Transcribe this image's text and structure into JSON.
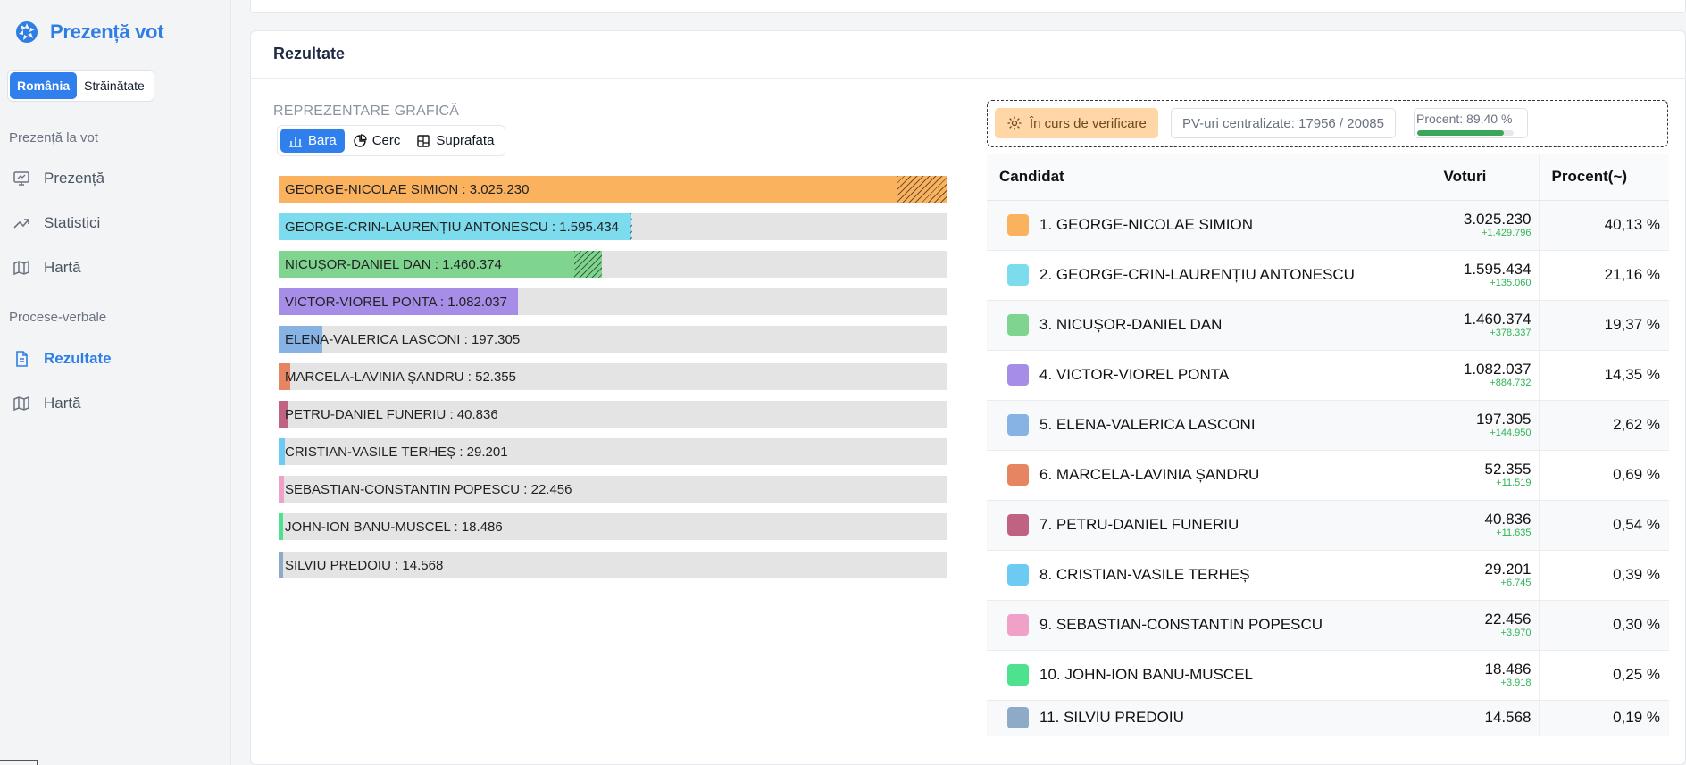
{
  "app": {
    "title": "Prezență vot"
  },
  "region_tabs": [
    "România",
    "Străinătate"
  ],
  "nav": {
    "section1": "Prezență la vot",
    "items1": [
      "Prezență",
      "Statistici",
      "Hartă"
    ],
    "section2": "Procese-verbale",
    "items2": [
      "Rezultate",
      "Hartă"
    ]
  },
  "results": {
    "title": "Rezultate",
    "graph_label": "REPREZENTARE GRAFICĂ",
    "chart_tabs": [
      "Bara",
      "Cerc",
      "Suprafata"
    ]
  },
  "status": {
    "verify": "În curs de verificare",
    "pv": "PV-uri centralizate: 17956 / 20085",
    "percent_label": "Procent: 89,40 %",
    "percent_value": 0.894
  },
  "table": {
    "headers": [
      "Candidat",
      "Voturi",
      "Procent(~)"
    ]
  },
  "candidates": [
    {
      "name": "GEORGE-NICOLAE SIMION",
      "votes": "3.025.230",
      "delta": "+1.429.796",
      "percent": "40,13 %",
      "color": "#fbb25f",
      "bar_label": "GEORGE-NICOLAE SIMION : 3.025.230"
    },
    {
      "name": "GEORGE-CRIN-LAURENȚIU ANTONESCU",
      "votes": "1.595.434",
      "delta": "+135.060",
      "percent": "21,16 %",
      "color": "#7cdbec",
      "bar_label": "GEORGE-CRIN-LAURENȚIU ANTONESCU : 1.595.434"
    },
    {
      "name": "NICUȘOR-DANIEL DAN",
      "votes": "1.460.374",
      "delta": "+378.337",
      "percent": "19,37 %",
      "color": "#7fd48f",
      "bar_label": "NICUȘOR-DANIEL DAN : 1.460.374"
    },
    {
      "name": "VICTOR-VIOREL PONTA",
      "votes": "1.082.037",
      "delta": "+884.732",
      "percent": "14,35 %",
      "color": "#a68ee8",
      "bar_label": "VICTOR-VIOREL PONTA : 1.082.037"
    },
    {
      "name": "ELENA-VALERICA LASCONI",
      "votes": "197.305",
      "delta": "+144.950",
      "percent": "2,62 %",
      "color": "#86b3e4",
      "bar_label": "ELENA-VALERICA LASCONI : 197.305"
    },
    {
      "name": "MARCELA-LAVINIA ȘANDRU",
      "votes": "52.355",
      "delta": "+11.519",
      "percent": "0,69 %",
      "color": "#e58562",
      "bar_label": "MARCELA-LAVINIA ȘANDRU : 52.355"
    },
    {
      "name": "PETRU-DANIEL FUNERIU",
      "votes": "40.836",
      "delta": "+11.635",
      "percent": "0,54 %",
      "color": "#c06383",
      "bar_label": "PETRU-DANIEL FUNERIU : 40.836"
    },
    {
      "name": "CRISTIAN-VASILE TERHEȘ",
      "votes": "29.201",
      "delta": "+6.745",
      "percent": "0,39 %",
      "color": "#6ccaf3",
      "bar_label": "CRISTIAN-VASILE TERHEȘ : 29.201"
    },
    {
      "name": "SEBASTIAN-CONSTANTIN POPESCU",
      "votes": "22.456",
      "delta": "+3.970",
      "percent": "0,30 %",
      "color": "#f0a1c7",
      "bar_label": "SEBASTIAN-CONSTANTIN POPESCU : 22.456"
    },
    {
      "name": "JOHN-ION BANU-MUSCEL",
      "votes": "18.486",
      "delta": "+3.918",
      "percent": "0,25 %",
      "color": "#4ee28f",
      "bar_label": "JOHN-ION BANU-MUSCEL : 18.486"
    },
    {
      "name": "SILVIU PREDOIU",
      "votes": "14.568",
      "delta": "",
      "percent": "0,19 %",
      "color": "#8daac7",
      "bar_label": "SILVIU PREDOIU : 14.568"
    }
  ],
  "chart_data": {
    "type": "bar",
    "orientation": "horizontal",
    "categories": [
      "GEORGE-NICOLAE SIMION",
      "GEORGE-CRIN-LAURENȚIU ANTONESCU",
      "NICUȘOR-DANIEL DAN",
      "VICTOR-VIOREL PONTA",
      "ELENA-VALERICA LASCONI",
      "MARCELA-LAVINIA ȘANDRU",
      "PETRU-DANIEL FUNERIU",
      "CRISTIAN-VASILE TERHEȘ",
      "SEBASTIAN-CONSTANTIN POPESCU",
      "JOHN-ION BANU-MUSCEL",
      "SILVIU PREDOIU"
    ],
    "values": [
      3025230,
      1595434,
      1460374,
      1082037,
      197305,
      52355,
      40836,
      29201,
      22456,
      18486,
      14568
    ],
    "hatched_extension": [
      3025230,
      1595434,
      1460374,
      0,
      0,
      0,
      0,
      0,
      0,
      0,
      0
    ],
    "hatch_start": [
      2799000,
      1592000,
      1336000,
      0,
      0,
      0,
      0,
      0,
      0,
      0,
      0
    ],
    "xlim": [
      0,
      3025230
    ],
    "grid": false
  }
}
